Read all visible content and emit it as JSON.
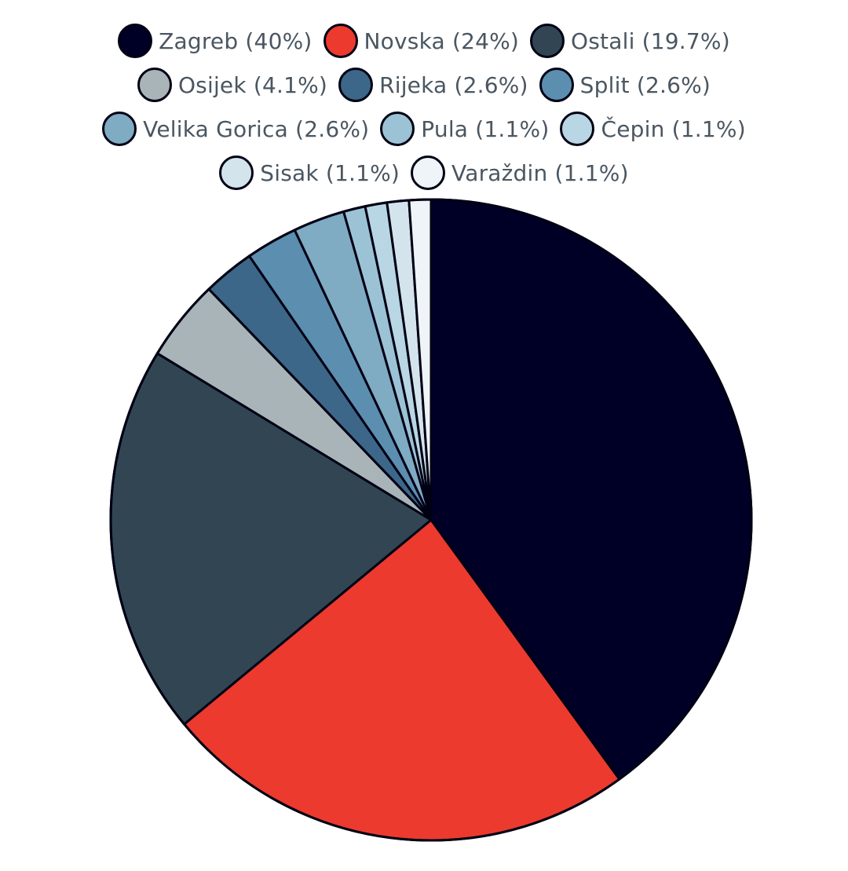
{
  "chart_data": {
    "type": "pie",
    "legend_placement": "top",
    "slices": [
      {
        "label": "Zagreb (40%)",
        "value": 40,
        "color": "#000026"
      },
      {
        "label": "Novska (24%)",
        "value": 24,
        "color": "#ec3a2f"
      },
      {
        "label": "Ostali (19.7%)",
        "value": 19.7,
        "color": "#314652"
      },
      {
        "label": "Osijek (4.1%)",
        "value": 4.1,
        "color": "#a9b4b8"
      },
      {
        "label": "Rijeka (2.6%)",
        "value": 2.6,
        "color": "#3c6788"
      },
      {
        "label": "Split (2.6%)",
        "value": 2.6,
        "color": "#5c8eb0"
      },
      {
        "label": "Velika Gorica (2.6%)",
        "value": 2.6,
        "color": "#7fabc3"
      },
      {
        "label": "Pula (1.1%)",
        "value": 1.1,
        "color": "#9cc2d5"
      },
      {
        "label": "Čepin (1.1%)",
        "value": 1.1,
        "color": "#b8d6e3"
      },
      {
        "label": "Sisak (1.1%)",
        "value": 1.1,
        "color": "#d3e4ec"
      },
      {
        "label": "Varaždin (1.1%)",
        "value": 1.1,
        "color": "#eef4f7"
      }
    ]
  }
}
